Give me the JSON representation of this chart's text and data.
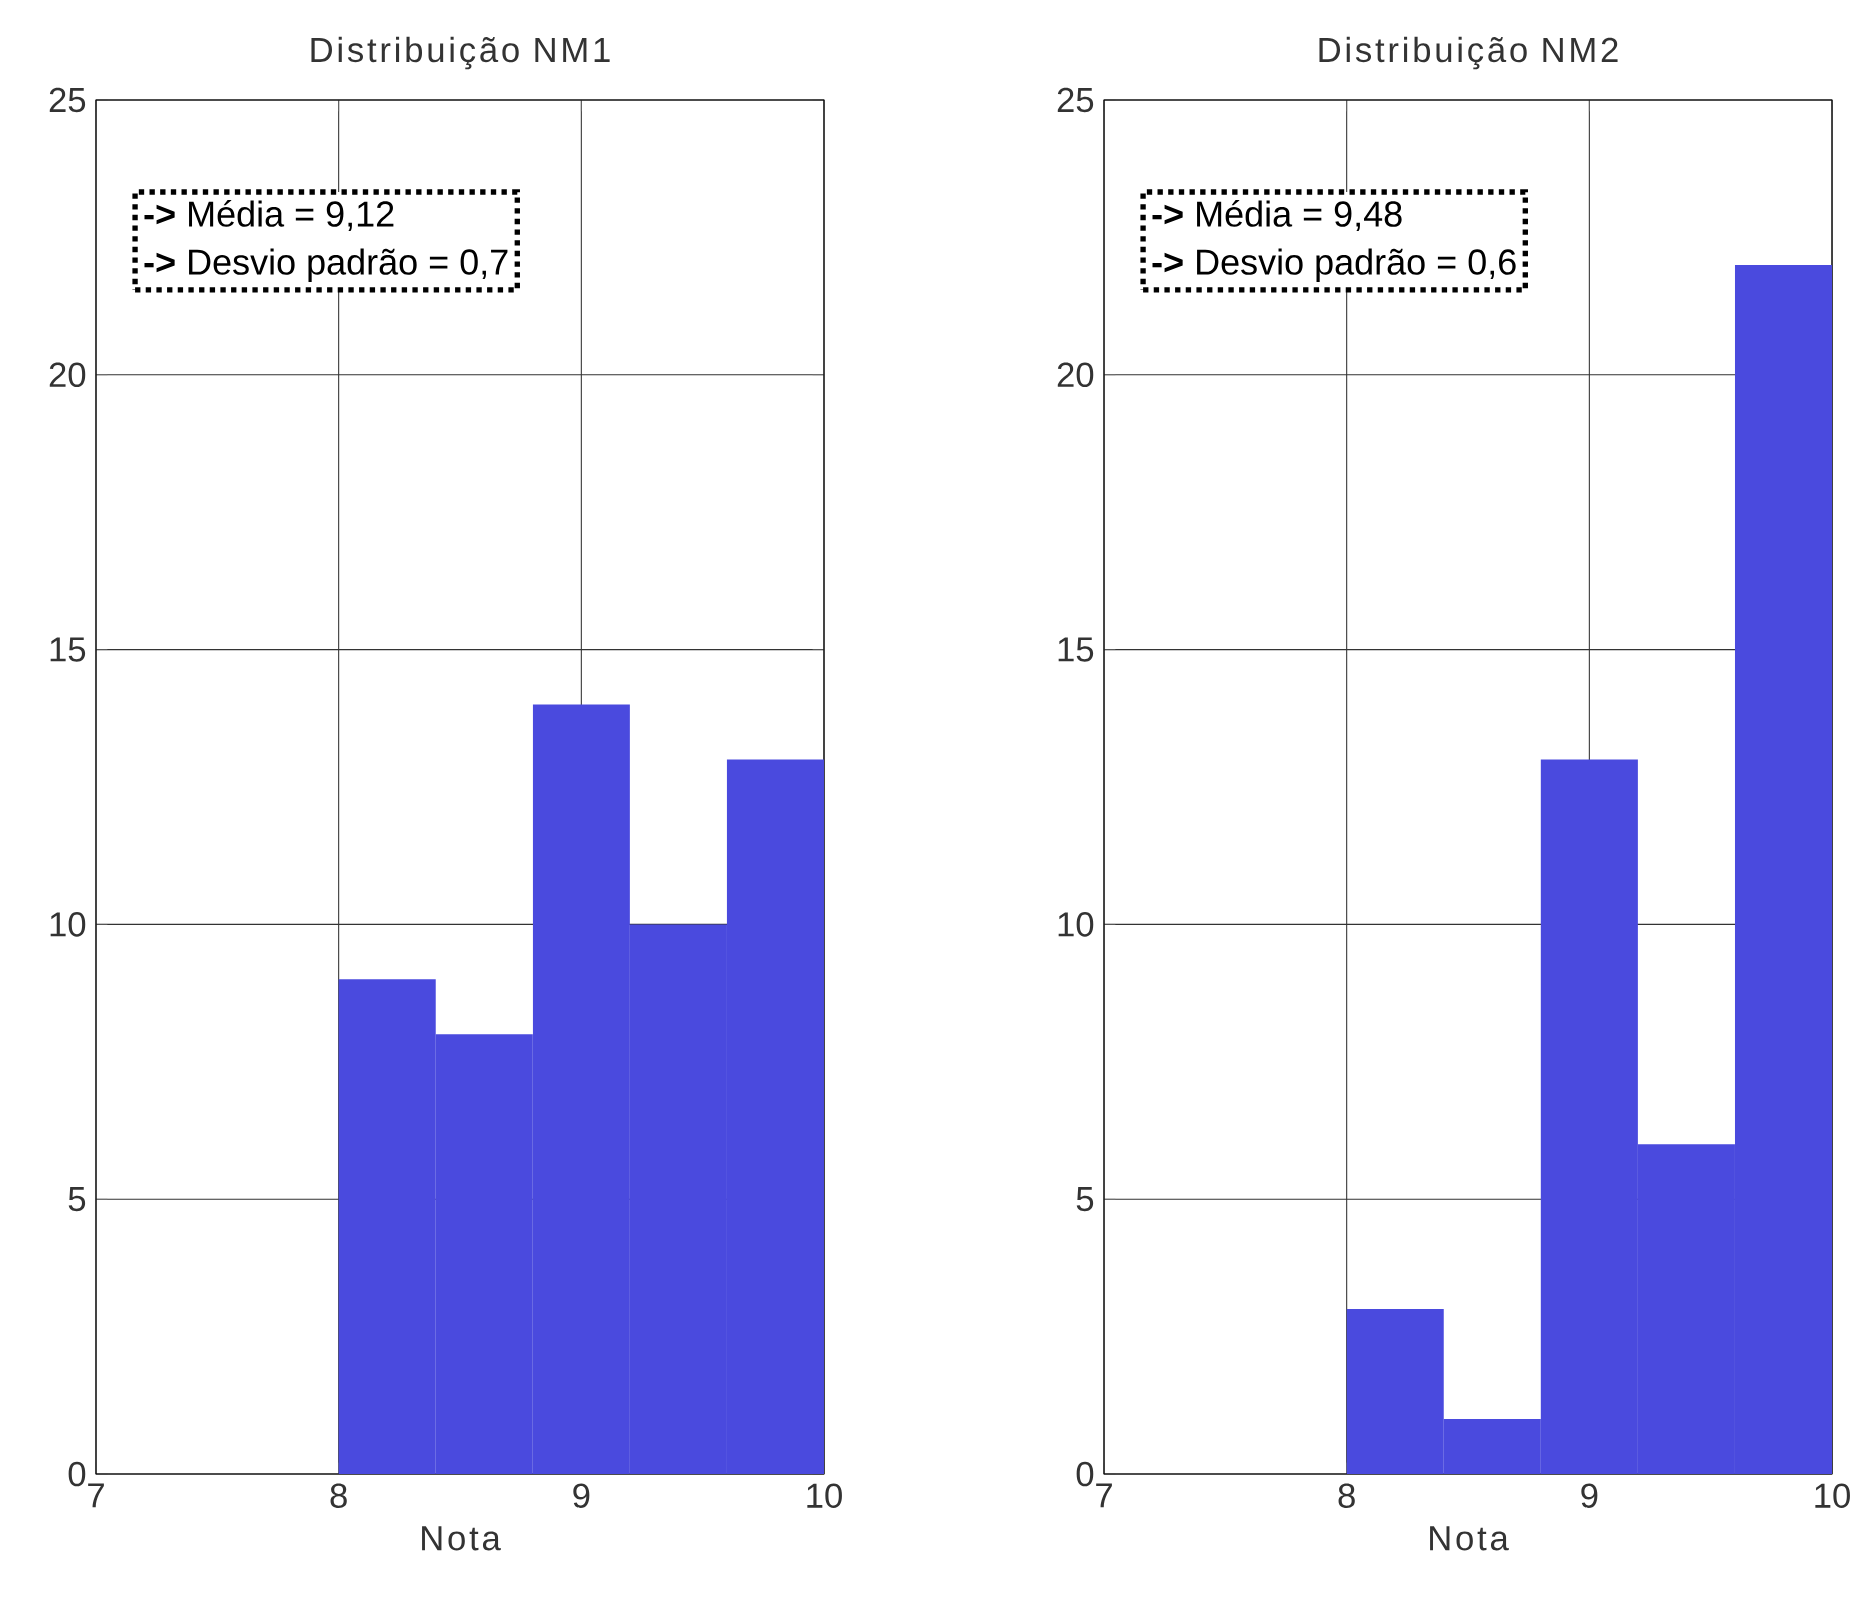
{
  "chart_data": [
    {
      "type": "histogram",
      "title": "Distribuição NM1",
      "xlabel": "Nota",
      "bins": [
        8,
        8.4,
        8.8,
        9.2,
        9.6,
        10
      ],
      "values": [
        9,
        8,
        14,
        10,
        13
      ],
      "color": "#4a4ade",
      "xlim": [
        7,
        10
      ],
      "ylim": [
        0,
        25
      ],
      "xticks": [
        7,
        8,
        9,
        10
      ],
      "yticks": [
        0,
        5,
        10,
        15,
        20,
        25
      ],
      "grid": true,
      "annotations": [
        "**->** Média = 9,12",
        "**->** Desvio padrão = 0,7"
      ]
    },
    {
      "type": "histogram",
      "title": "Distribuição NM2",
      "xlabel": "Nota",
      "bins": [
        8,
        8.4,
        8.8,
        9.2,
        9.6,
        10
      ],
      "values": [
        3,
        1,
        13,
        6,
        22
      ],
      "color": "#4a4ade",
      "xlim": [
        7,
        10
      ],
      "ylim": [
        0,
        25
      ],
      "xticks": [
        7,
        8,
        9,
        10
      ],
      "yticks": [
        0,
        5,
        10,
        15,
        20,
        25
      ],
      "grid": true,
      "annotations": [
        "**->** Média = 9,48",
        "**->** Desvio padrão = 0,6"
      ]
    }
  ]
}
